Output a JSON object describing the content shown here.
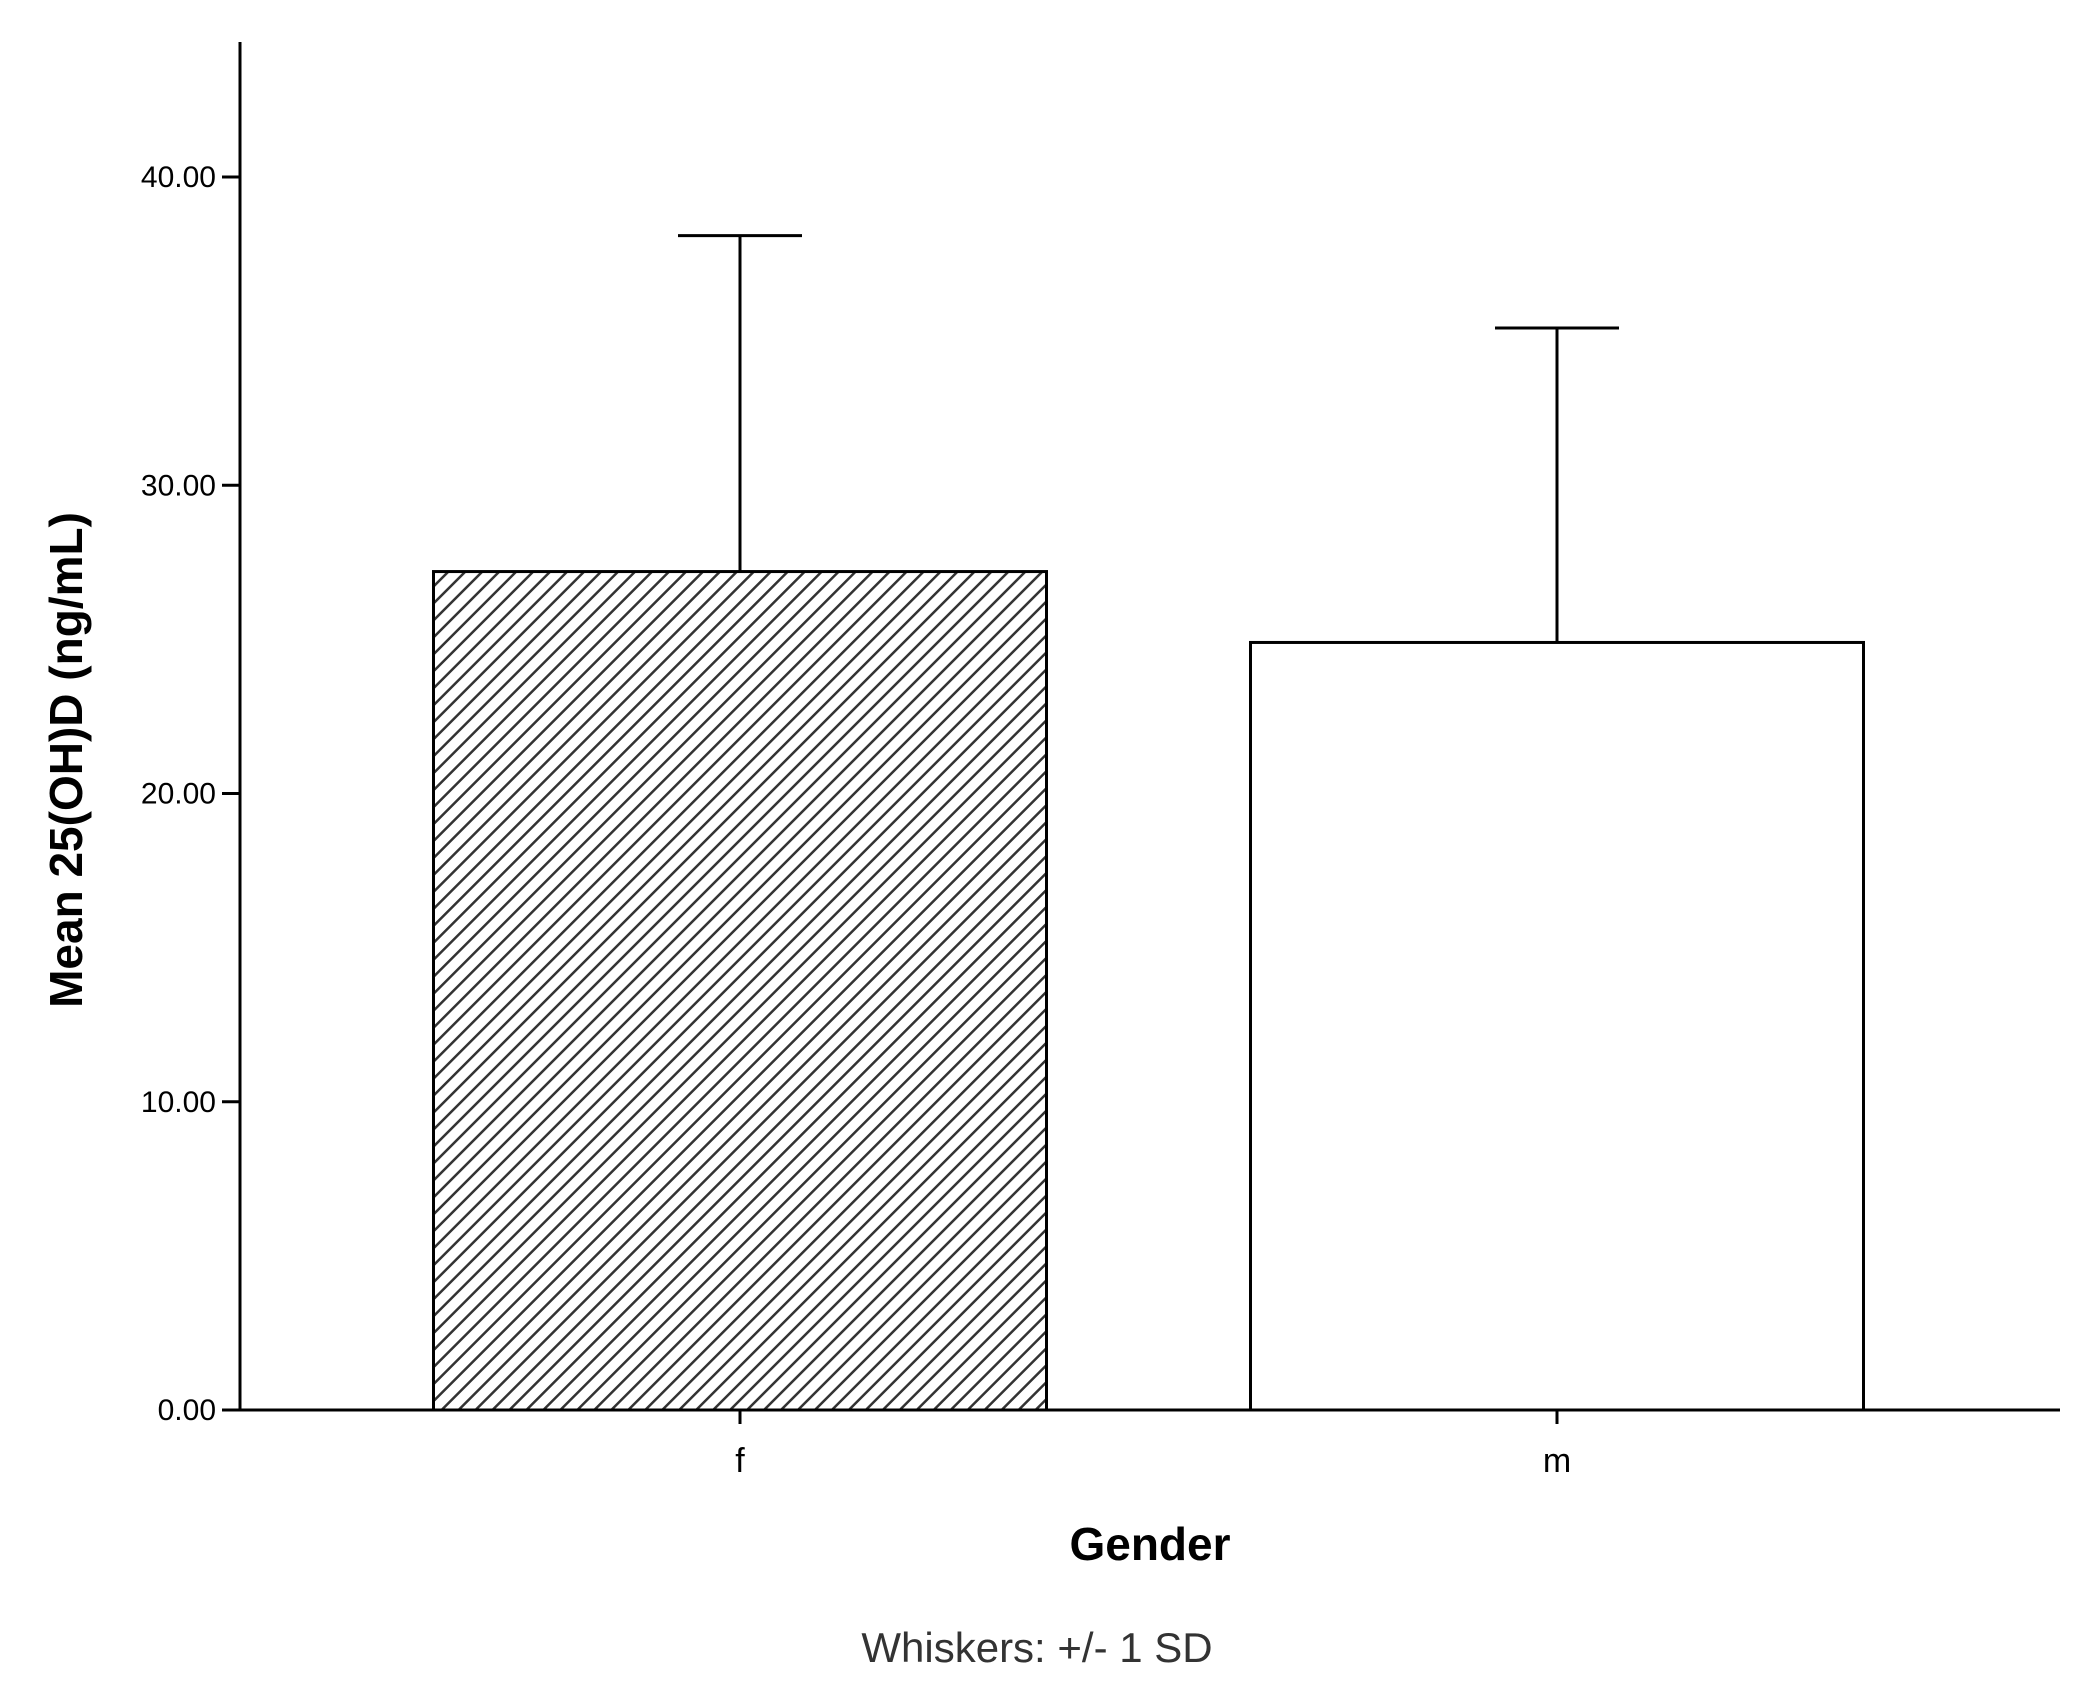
{
  "chart_data": {
    "type": "bar",
    "categories": [
      "f",
      "m"
    ],
    "values": [
      27.2,
      24.9
    ],
    "error_sd": [
      10.9,
      10.2
    ],
    "xlabel": "Gender",
    "ylabel": "Mean 25(OH)D (ng/mL)",
    "ylim": [
      0,
      44.5
    ],
    "yticks": [
      0,
      10,
      20,
      30,
      40
    ],
    "ytick_labels": [
      "0.00",
      "10.00",
      "20.00",
      "30.00",
      "40.00"
    ],
    "bar_fills": [
      "hatched",
      "white"
    ],
    "grid": false,
    "legend": "none",
    "footnote": "Whiskers: +/- 1 SD"
  }
}
